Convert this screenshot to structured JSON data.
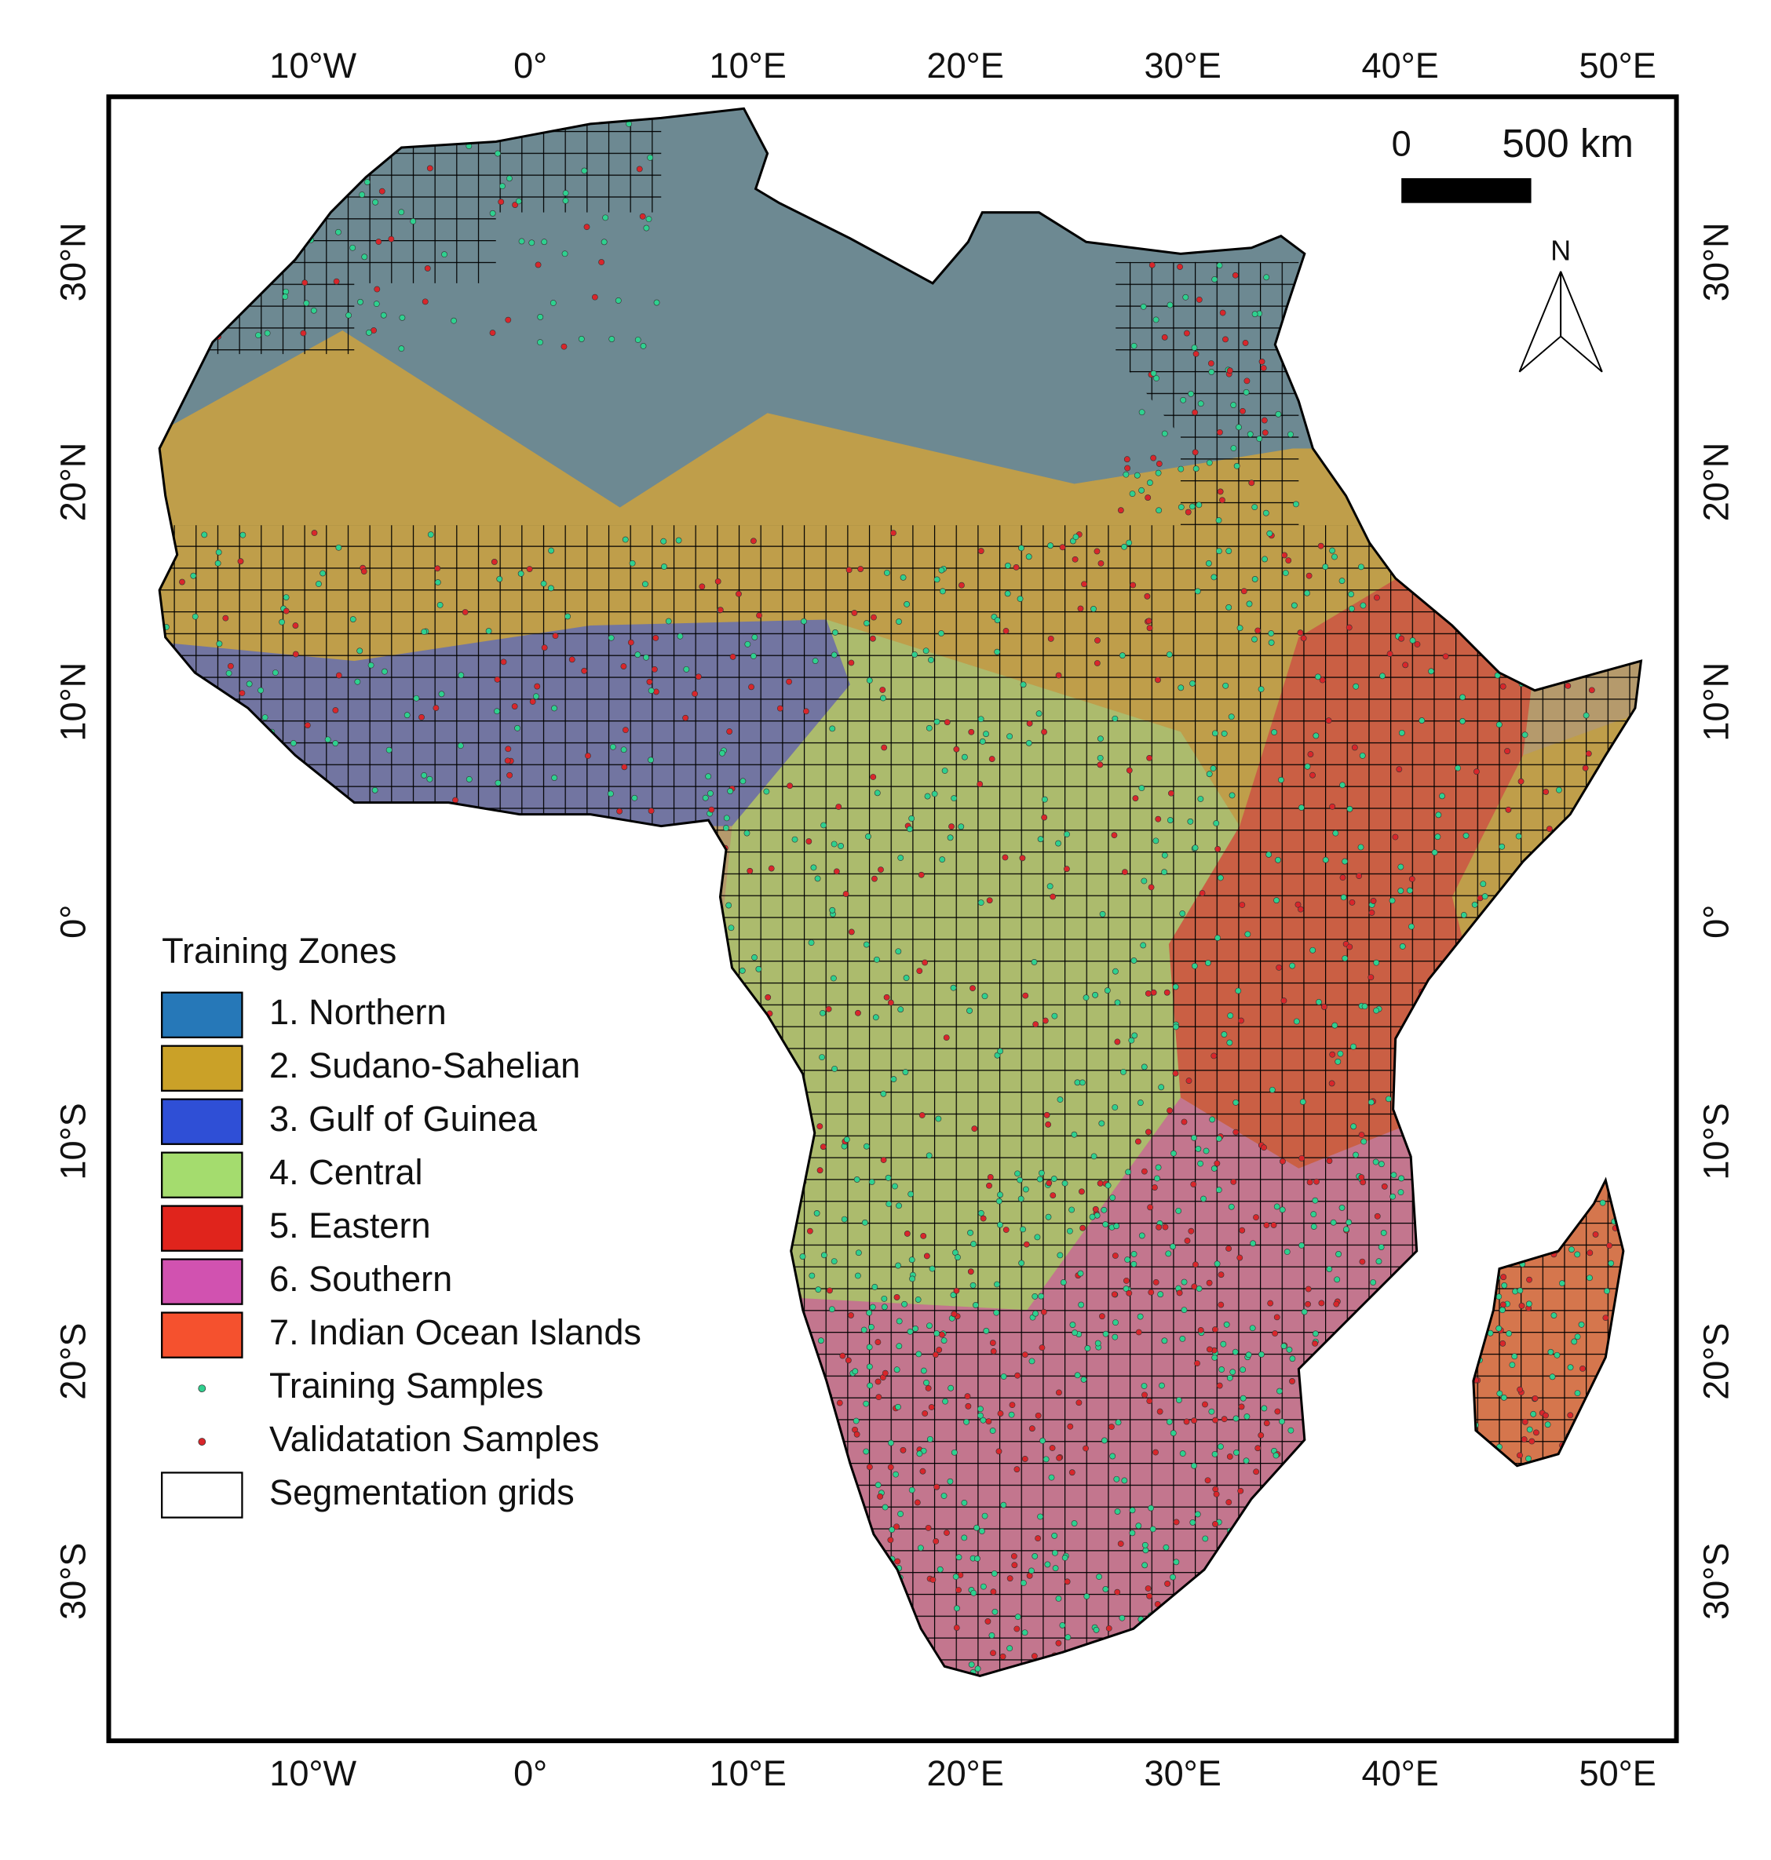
{
  "map": {
    "lon_labels_top": [
      "10°W",
      "0°",
      "10°E",
      "20°E",
      "30°E",
      "40°E",
      "50°E"
    ],
    "lon_labels_bottom": [
      "10°W",
      "0°",
      "10°E",
      "20°E",
      "30°E",
      "40°E",
      "50°E"
    ],
    "lat_labels_left": [
      "30°N",
      "20°N",
      "10°N",
      "0°",
      "10°S",
      "20°S",
      "30°S"
    ],
    "lat_labels_right": [
      "30°N",
      "20°N",
      "10°N",
      "0°",
      "10°S",
      "20°S",
      "30°S"
    ],
    "scale_bar": {
      "start": "0",
      "end": "500 km"
    },
    "north": "N",
    "legend": {
      "title": "Training Zones",
      "zones": [
        {
          "label": "1. Northern",
          "color": "#2678b8"
        },
        {
          "label": "2. Sudano-Sahelian",
          "color": "#caa128"
        },
        {
          "label": "3. Gulf of Guinea",
          "color": "#2f4fd6"
        },
        {
          "label": "4. Central",
          "color": "#a4dc6e"
        },
        {
          "label": "5. Eastern",
          "color": "#e0241c"
        },
        {
          "label": "6. Southern",
          "color": "#d152b0"
        },
        {
          "label": "7. Indian Ocean Islands",
          "color": "#f5512e"
        }
      ],
      "symbols": [
        {
          "label": "Training Samples",
          "color": "#2fd08f"
        },
        {
          "label": "Validatation Samples",
          "color": "#d8262b"
        },
        {
          "label": "Segmentation grids"
        }
      ]
    }
  }
}
